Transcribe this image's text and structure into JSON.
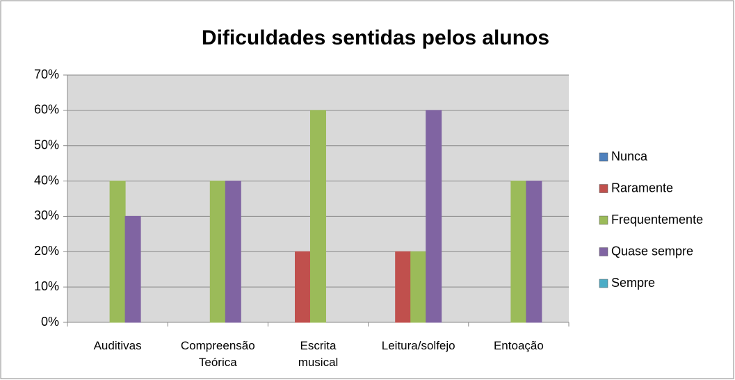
{
  "chart_data": {
    "type": "bar",
    "title": "Dificuldades sentidas pelos alunos",
    "categories": [
      "Auditivas",
      "Compreensão Teórica",
      "Escrita musical",
      "Leitura/solfejo",
      "Entoação"
    ],
    "series": [
      {
        "name": "Nunca",
        "color": "#4f81bd",
        "values": [
          0,
          0,
          0,
          0,
          0
        ]
      },
      {
        "name": "Raramente",
        "color": "#c0504d",
        "values": [
          0,
          0,
          20,
          20,
          0
        ]
      },
      {
        "name": "Frequentemente",
        "color": "#9bbb59",
        "values": [
          40,
          40,
          60,
          20,
          40
        ]
      },
      {
        "name": "Quase sempre",
        "color": "#8064a2",
        "values": [
          30,
          40,
          0,
          60,
          40
        ]
      },
      {
        "name": "Sempre",
        "color": "#4bacc6",
        "values": [
          0,
          0,
          0,
          0,
          0
        ]
      }
    ],
    "ylim": [
      0,
      70
    ],
    "yticks": [
      {
        "value": 0,
        "label": "0%"
      },
      {
        "value": 10,
        "label": "10%"
      },
      {
        "value": 20,
        "label": "20%"
      },
      {
        "value": 30,
        "label": "30%"
      },
      {
        "value": 40,
        "label": "40%"
      },
      {
        "value": 50,
        "label": "50%"
      },
      {
        "value": 60,
        "label": "60%"
      },
      {
        "value": 70,
        "label": "70%"
      }
    ],
    "grid": true,
    "legend": "right"
  }
}
